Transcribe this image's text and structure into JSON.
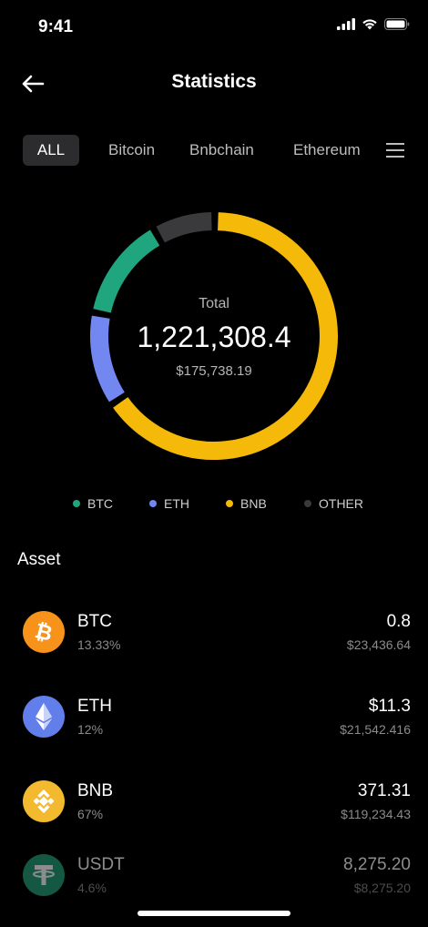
{
  "status_bar": {
    "time": "9:41"
  },
  "header": {
    "title": "Statistics"
  },
  "tabs": [
    {
      "label": "ALL",
      "active": true
    },
    {
      "label": "Bitcoin"
    },
    {
      "label": "Bnbchain"
    },
    {
      "label": "Ethereum"
    }
  ],
  "summary": {
    "total_label": "Total",
    "total_value": "1,221,308.4",
    "total_usd": "$175,738.19"
  },
  "chart_data": {
    "type": "pie",
    "categories": [
      "BTC",
      "ETH",
      "BNB",
      "OTHER"
    ],
    "values": [
      13.33,
      12,
      67,
      7.67
    ],
    "colors": [
      "#1fa67e",
      "#7387f0",
      "#f5b90a",
      "#3a3a3c"
    ]
  },
  "legend": [
    {
      "label": "BTC",
      "color": "#1fa67e"
    },
    {
      "label": "ETH",
      "color": "#7387f0"
    },
    {
      "label": "BNB",
      "color": "#f5b90a"
    },
    {
      "label": "OTHER",
      "color": "#3a3a3c"
    }
  ],
  "asset_section": {
    "title": "Asset"
  },
  "assets": [
    {
      "symbol": "BTC",
      "percent": "13.33%",
      "amount": "0.8",
      "usd": "$23,436.64",
      "icon": "bitcoin-icon",
      "color": "#f7931a"
    },
    {
      "symbol": "ETH",
      "percent": "12%",
      "amount": "$11.3",
      "usd": "$21,542.416",
      "icon": "ethereum-icon",
      "color": "#627eea"
    },
    {
      "symbol": "BNB",
      "percent": "67%",
      "amount": "371.31",
      "usd": "$119,234.43",
      "icon": "bnb-icon",
      "color": "#f3ba2f"
    },
    {
      "symbol": "USDT",
      "percent": "4.6%",
      "amount": "8,275.20",
      "usd": "$8,275.20",
      "icon": "tether-icon",
      "color": "#26a17b"
    }
  ]
}
